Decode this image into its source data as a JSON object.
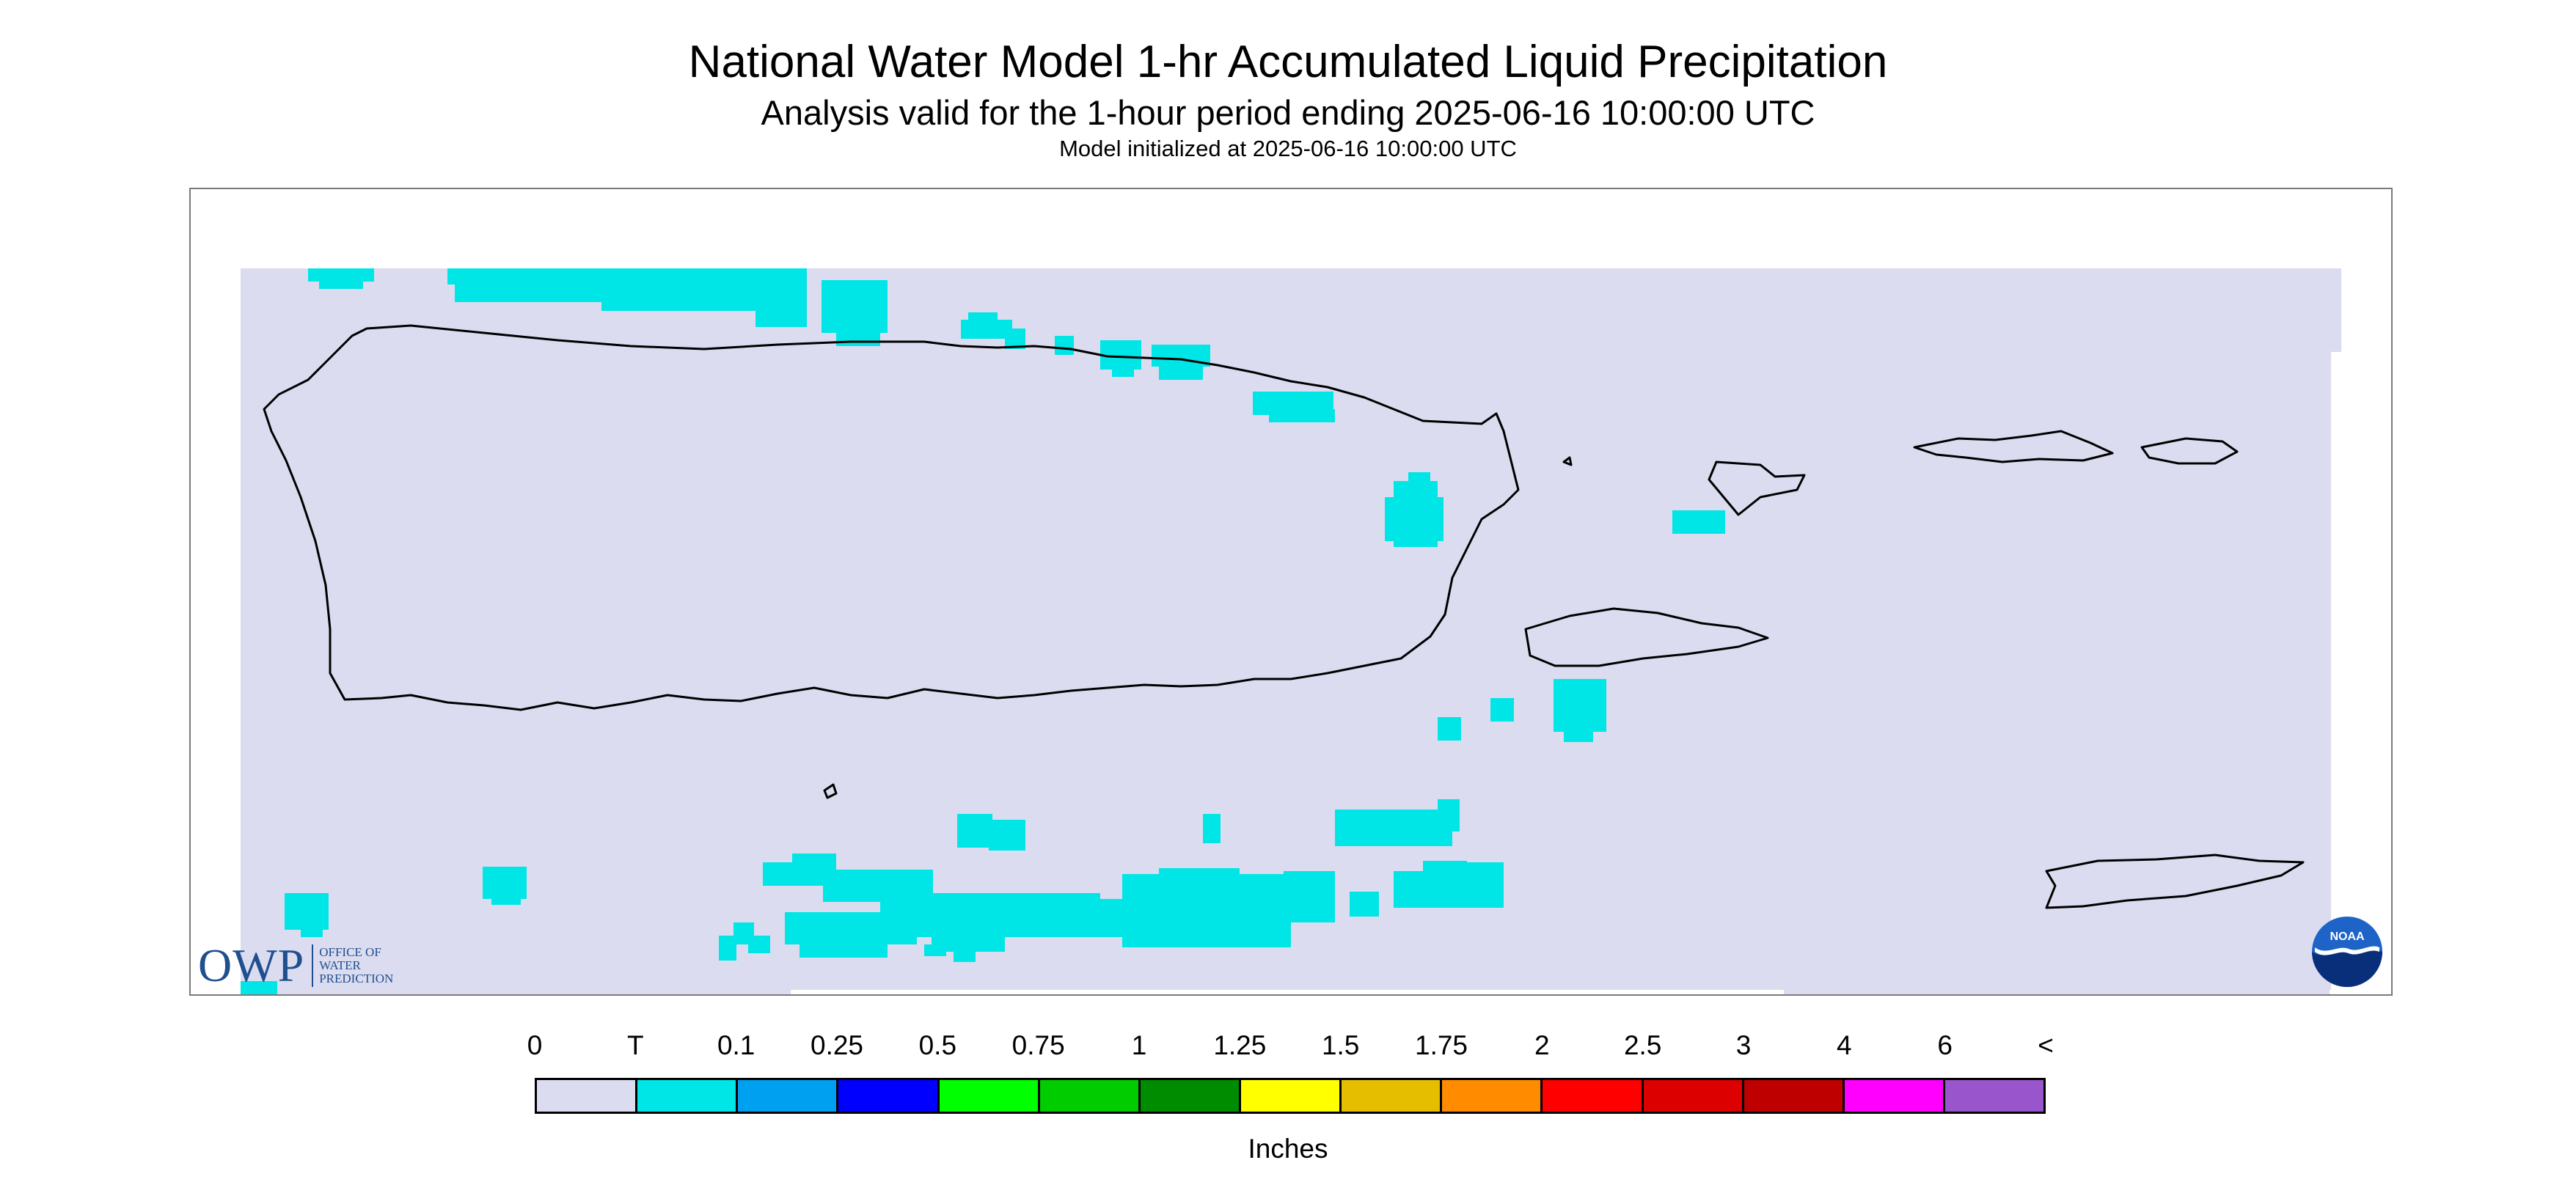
{
  "title": "National Water Model 1-hr Accumulated Liquid Precipitation",
  "subtitle": "Analysis valid for the 1-hour period ending 2025-06-16 10:00:00 UTC",
  "model_note": "Model initialized at 2025-06-16 10:00:00 UTC",
  "legend": {
    "unit": "Inches",
    "labels": [
      "0",
      "T",
      "0.1",
      "0.25",
      "0.5",
      "0.75",
      "1",
      "1.25",
      "1.5",
      "1.75",
      "2",
      "2.5",
      "3",
      "4",
      "6",
      "<"
    ],
    "colors": [
      "#dcdcf0",
      "#00e6e6",
      "#00a0f0",
      "#0000ff",
      "#00ff00",
      "#00cc00",
      "#008c00",
      "#ffff00",
      "#e6be00",
      "#ff8c00",
      "#ff0000",
      "#dc0000",
      "#be0000",
      "#ff00ff",
      "#9955cc"
    ]
  },
  "map": {
    "no_precip_color": "#dcdcf0",
    "trace_color": "#00e6e6",
    "coastline_color": "#000000"
  },
  "logos": {
    "owp_mark": "OWP",
    "owp_lines": [
      "OFFICE OF",
      "WATER",
      "PREDICTION"
    ],
    "noaa_text": "NOAA"
  }
}
